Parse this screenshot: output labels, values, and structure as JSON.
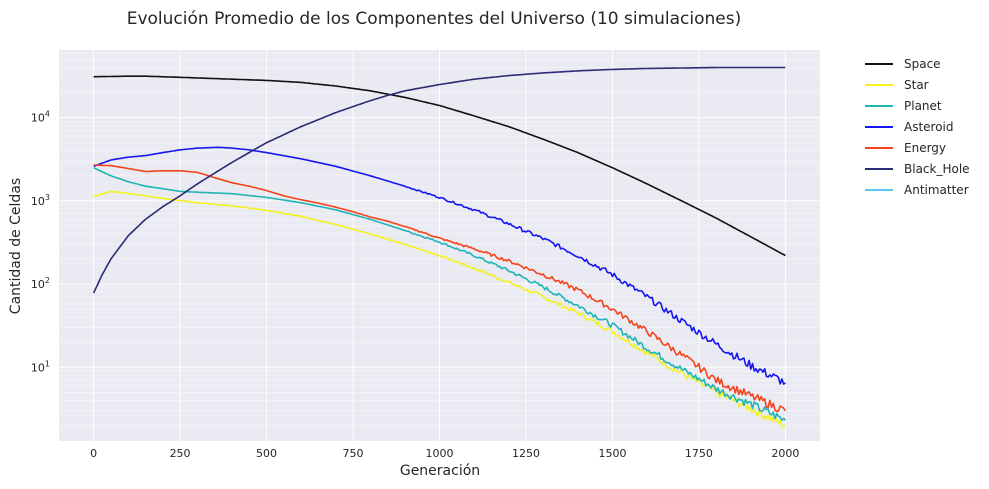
{
  "chart_data": {
    "type": "line",
    "title": "Evolución Promedio de los Componentes del Universo (10 simulaciones)",
    "xlabel": "Generación",
    "ylabel": "Cantidad de Celdas",
    "xlim": [
      -100,
      2100
    ],
    "ylim": [
      1.3,
      65000
    ],
    "yscale": "log",
    "x_ticks": [
      0,
      250,
      500,
      750,
      1000,
      1250,
      1500,
      1750,
      2000
    ],
    "y_ticks": [
      {
        "value": 10,
        "label": "10",
        "exp": "1"
      },
      {
        "value": 100,
        "label": "10",
        "exp": "2"
      },
      {
        "value": 1000,
        "label": "10",
        "exp": "3"
      },
      {
        "value": 10000,
        "label": "10",
        "exp": "4"
      }
    ],
    "grid": true,
    "background": "#eaeaf2",
    "legend_position": "outside-right",
    "series": [
      {
        "name": "Space",
        "color": "#111111",
        "points": [
          [
            0,
            31000
          ],
          [
            100,
            31500
          ],
          [
            150,
            31500
          ],
          [
            250,
            30500
          ],
          [
            400,
            29000
          ],
          [
            500,
            28000
          ],
          [
            600,
            26500
          ],
          [
            700,
            24000
          ],
          [
            800,
            21000
          ],
          [
            900,
            17500
          ],
          [
            1000,
            14000
          ],
          [
            1100,
            10500
          ],
          [
            1200,
            7800
          ],
          [
            1300,
            5500
          ],
          [
            1400,
            3800
          ],
          [
            1500,
            2500
          ],
          [
            1600,
            1600
          ],
          [
            1700,
            1000
          ],
          [
            1800,
            620
          ],
          [
            1900,
            370
          ],
          [
            2000,
            220
          ]
        ]
      },
      {
        "name": "Star",
        "color": "#f4f21e",
        "points": [
          [
            0,
            1130
          ],
          [
            50,
            1300
          ],
          [
            100,
            1230
          ],
          [
            200,
            1070
          ],
          [
            300,
            950
          ],
          [
            400,
            870
          ],
          [
            500,
            770
          ],
          [
            600,
            650
          ],
          [
            700,
            520
          ],
          [
            800,
            400
          ],
          [
            900,
            300
          ],
          [
            1000,
            220
          ],
          [
            1100,
            155
          ],
          [
            1200,
            105
          ],
          [
            1300,
            70
          ],
          [
            1400,
            45
          ],
          [
            1500,
            27
          ],
          [
            1600,
            15
          ],
          [
            1700,
            8.5
          ],
          [
            1800,
            5
          ],
          [
            1900,
            3.2
          ],
          [
            2000,
            2.0
          ]
        ]
      },
      {
        "name": "Planet",
        "color": "#1fb5b5",
        "points": [
          [
            0,
            2500
          ],
          [
            50,
            2000
          ],
          [
            100,
            1700
          ],
          [
            150,
            1500
          ],
          [
            200,
            1400
          ],
          [
            250,
            1300
          ],
          [
            300,
            1270
          ],
          [
            400,
            1220
          ],
          [
            500,
            1100
          ],
          [
            600,
            950
          ],
          [
            700,
            780
          ],
          [
            800,
            600
          ],
          [
            900,
            440
          ],
          [
            1000,
            320
          ],
          [
            1100,
            220
          ],
          [
            1200,
            145
          ],
          [
            1300,
            92
          ],
          [
            1400,
            55
          ],
          [
            1500,
            32
          ],
          [
            1600,
            17
          ],
          [
            1700,
            9.5
          ],
          [
            1800,
            5.5
          ],
          [
            1900,
            3.6
          ],
          [
            2000,
            2.3
          ]
        ]
      },
      {
        "name": "Asteroid",
        "color": "#1616f0",
        "points": [
          [
            0,
            2600
          ],
          [
            50,
            3100
          ],
          [
            100,
            3350
          ],
          [
            150,
            3500
          ],
          [
            200,
            3800
          ],
          [
            250,
            4100
          ],
          [
            300,
            4300
          ],
          [
            360,
            4400
          ],
          [
            400,
            4300
          ],
          [
            450,
            4100
          ],
          [
            500,
            3800
          ],
          [
            600,
            3200
          ],
          [
            700,
            2600
          ],
          [
            800,
            2000
          ],
          [
            900,
            1500
          ],
          [
            1000,
            1100
          ],
          [
            1100,
            780
          ],
          [
            1200,
            530
          ],
          [
            1300,
            350
          ],
          [
            1400,
            220
          ],
          [
            1500,
            130
          ],
          [
            1600,
            70
          ],
          [
            1700,
            36
          ],
          [
            1800,
            19
          ],
          [
            1900,
            10.5
          ],
          [
            2000,
            6.5
          ]
        ]
      },
      {
        "name": "Energy",
        "color": "#f5441c",
        "points": [
          [
            0,
            2700
          ],
          [
            50,
            2650
          ],
          [
            100,
            2450
          ],
          [
            150,
            2250
          ],
          [
            200,
            2300
          ],
          [
            250,
            2300
          ],
          [
            300,
            2200
          ],
          [
            350,
            1900
          ],
          [
            400,
            1650
          ],
          [
            450,
            1500
          ],
          [
            500,
            1330
          ],
          [
            550,
            1150
          ],
          [
            600,
            1030
          ],
          [
            650,
            940
          ],
          [
            700,
            840
          ],
          [
            750,
            740
          ],
          [
            800,
            640
          ],
          [
            850,
            570
          ],
          [
            900,
            490
          ],
          [
            950,
            420
          ],
          [
            1000,
            355
          ],
          [
            1100,
            265
          ],
          [
            1200,
            190
          ],
          [
            1300,
            130
          ],
          [
            1400,
            85
          ],
          [
            1500,
            50
          ],
          [
            1600,
            27
          ],
          [
            1700,
            14
          ],
          [
            1750,
            10
          ],
          [
            1800,
            7
          ],
          [
            1900,
            4.5
          ],
          [
            2000,
            3.0
          ]
        ]
      },
      {
        "name": "Black_Hole",
        "color": "#2b2b76",
        "points": [
          [
            0,
            78
          ],
          [
            25,
            130
          ],
          [
            50,
            200
          ],
          [
            100,
            380
          ],
          [
            150,
            600
          ],
          [
            200,
            850
          ],
          [
            250,
            1150
          ],
          [
            300,
            1600
          ],
          [
            400,
            2900
          ],
          [
            500,
            5000
          ],
          [
            600,
            7800
          ],
          [
            700,
            11500
          ],
          [
            800,
            16000
          ],
          [
            850,
            18500
          ],
          [
            900,
            21000
          ],
          [
            1000,
            25000
          ],
          [
            1100,
            29000
          ],
          [
            1200,
            32000
          ],
          [
            1300,
            34500
          ],
          [
            1400,
            36500
          ],
          [
            1500,
            38000
          ],
          [
            1600,
            39000
          ],
          [
            1700,
            39500
          ],
          [
            1800,
            40000
          ],
          [
            1900,
            40000
          ],
          [
            2000,
            40000
          ]
        ]
      },
      {
        "name": "Antimatter",
        "color": "#5bc4ef",
        "points": []
      }
    ]
  }
}
